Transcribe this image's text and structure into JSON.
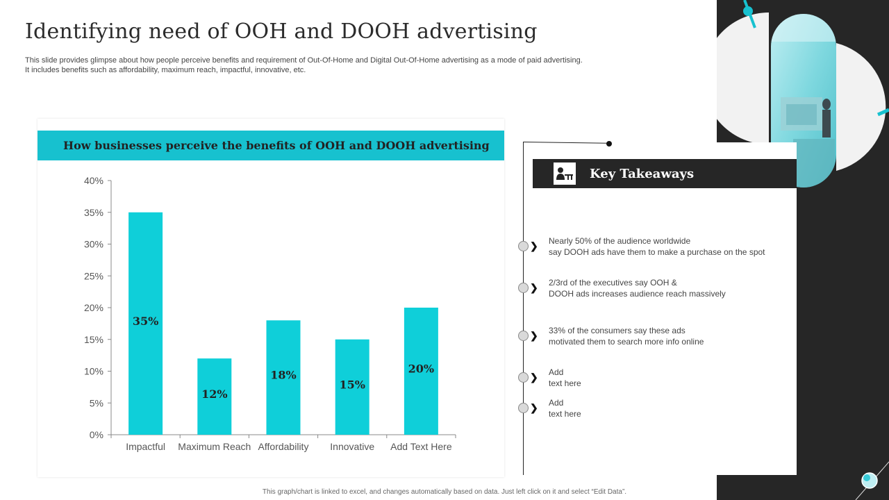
{
  "slide": {
    "title": "Identifying need of OOH and DOOH advertising",
    "subtitle": "This slide provides glimpse about how people perceive benefits and requirement of Out-Of-Home and Digital Out-Of-Home advertising as a mode of paid advertising.\nIt includes benefits such as affordability, maximum reach, impactful, innovative, etc.",
    "footnote": "This graph/chart is linked to excel, and changes automatically based on data. Just left click on it and select “Edit Data”."
  },
  "colors": {
    "accent": "#17c1cf",
    "bar": "#0fcfd9",
    "dark": "#262626"
  },
  "chart_data": {
    "type": "bar",
    "title": "How businesses perceive the benefits of OOH and DOOH advertising",
    "categories": [
      "Impactful",
      "Maximum Reach",
      "Affordability",
      "Innovative",
      "Add Text Here"
    ],
    "values": [
      35,
      12,
      18,
      15,
      20
    ],
    "data_labels": [
      "35%",
      "12%",
      "18%",
      "15%",
      "20%"
    ],
    "ylim": [
      0,
      40
    ],
    "yticks": [
      0,
      5,
      10,
      15,
      20,
      25,
      30,
      35,
      40
    ],
    "ytick_labels": [
      "0%",
      "5%",
      "10%",
      "15%",
      "20%",
      "25%",
      "30%",
      "35%",
      "40%"
    ],
    "grid": false,
    "xlabel": "",
    "ylabel": ""
  },
  "takeaways": {
    "header": "Key Takeaways",
    "icon": "presenter-icon",
    "items": [
      "Nearly 50% of the audience worldwide\nsay DOOH ads have them to make a purchase on the spot",
      "2/3rd of the executives  say OOH &\nDOOH ads increases audience reach massively",
      "33% of the consumers say these ads\nmotivated them to search more info online",
      "Add\ntext here",
      "Add\ntext here"
    ]
  }
}
